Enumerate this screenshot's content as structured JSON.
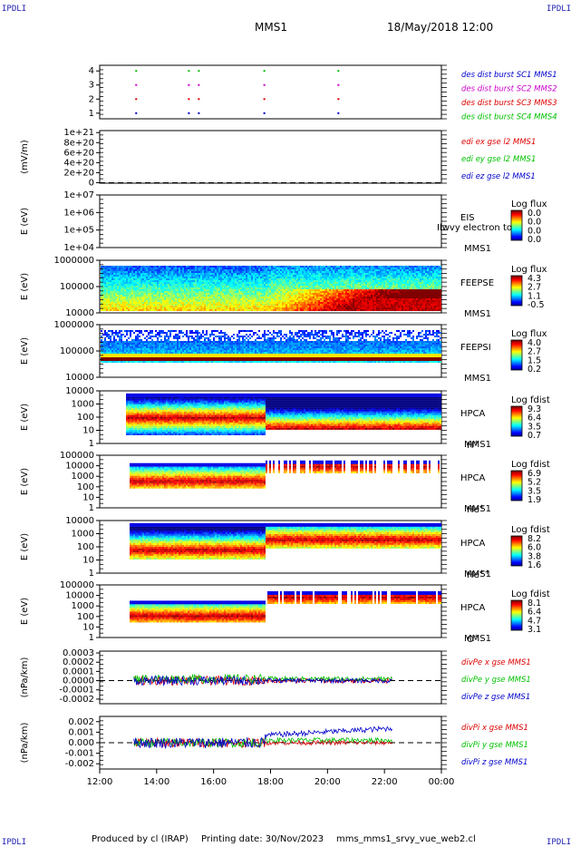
{
  "header": {
    "corner_label": "IPDLI",
    "mission": "MMS1",
    "date": "18/May/2018 12:00"
  },
  "footer": {
    "produced": "Produced by cl (IRAP)",
    "printing": "Printing date: 30/Nov/2023",
    "file": "mms_mms1_srvy_vue_web2.cl"
  },
  "colors": {
    "red": "#dd0000",
    "green": "#00c000",
    "blue": "#0000cc",
    "magenta": "#cc00cc",
    "axis": "#000000"
  },
  "chart_data": {
    "type": "multi-panel time series and spectrograms",
    "x_tick_labels": [
      "12:00",
      "14:00",
      "16:00",
      "18:00",
      "20:00",
      "22:00",
      "00:00"
    ],
    "x_range_hours": [
      12,
      24
    ],
    "panels": [
      {
        "type": "scatter",
        "y_tick_labels": [
          "4",
          "3",
          "2",
          "1"
        ],
        "ylim": [
          0.6,
          4.4
        ],
        "legend": [
          "des dist burst SC1 MMS1",
          "des dist burst SC2 MMS2",
          "des dist burst SC3 MMS3",
          "des dist burst SC4 MMS4"
        ],
        "legend_colors": [
          "#0000cc",
          "#cc00cc",
          "#dd0000",
          "#00c000"
        ],
        "burst_times_hours": [
          13.25,
          15.1,
          15.45,
          17.75,
          20.35
        ],
        "levels": [
          4,
          3,
          2,
          1
        ],
        "level_colors": [
          "#00c000",
          "#cc00cc",
          "#dd0000",
          "#0000cc"
        ]
      },
      {
        "type": "line",
        "ylabel": "(mV/m)",
        "y_tick_labels": [
          "1e+21",
          "8e+20",
          "6e+20",
          "4e+20",
          "2e+20",
          "0"
        ],
        "y_values": [
          1e+21,
          8e+20,
          6e+20,
          4e+20,
          2e+20,
          0
        ],
        "ylim": [
          -1e+19,
          1.04e+21
        ],
        "legend": [
          "edi ex gse l2 MMS1",
          "edi ey gse l2 MMS1",
          "edi ez gse l2 MMS1"
        ],
        "legend_colors": [
          "#dd0000",
          "#00c000",
          "#0000cc"
        ]
      },
      {
        "type": "heatmap",
        "ylabel": "E (eV)",
        "y_tick_labels": [
          "1e+07",
          "1e+06",
          "1e+05",
          "1e+04"
        ],
        "right_labels": [
          "EIS",
          "MMS1"
        ],
        "overlay_text": "Ilwvy electron to",
        "colorbar_title": "Log flux",
        "colorbar_ticks": [
          "0.0",
          "0.0",
          "0.0",
          "0.0"
        ]
      },
      {
        "type": "heatmap",
        "ylabel": "E (eV)",
        "y_tick_labels": [
          "1000000",
          "100000",
          "10000"
        ],
        "right_labels": [
          "FEEPSE",
          "MMS1"
        ],
        "colorbar_title": "Log flux",
        "colorbar_ticks": [
          "4.3",
          "2.7",
          "1.1",
          "-0.5"
        ]
      },
      {
        "type": "heatmap",
        "ylabel": "E (eV)",
        "y_tick_labels": [
          "1000000",
          "100000",
          "10000"
        ],
        "right_labels": [
          "FEEPSI",
          "MMS1"
        ],
        "colorbar_title": "Log flux",
        "colorbar_ticks": [
          "4.0",
          "2.7",
          "1.5",
          "0.2"
        ]
      },
      {
        "type": "heatmap",
        "ylabel": "E (eV)",
        "y_tick_labels": [
          "10000",
          "1000",
          "100",
          "10",
          "1"
        ],
        "right_labels": [
          "HPCA",
          "MMS1"
        ],
        "species": "H",
        "species_charge": "+",
        "colorbar_title": "Log fdist",
        "colorbar_ticks": [
          "9.3",
          "6.4",
          "3.5",
          "0.7"
        ]
      },
      {
        "type": "heatmap",
        "ylabel": "E (eV)",
        "y_tick_labels": [
          "100000",
          "10000",
          "1000",
          "100",
          "10",
          "1"
        ],
        "right_labels": [
          "HPCA",
          "MMS1"
        ],
        "species": "He",
        "species_charge": "+",
        "colorbar_title": "Log fdist",
        "colorbar_ticks": [
          "6.9",
          "5.2",
          "3.5",
          "1.9"
        ]
      },
      {
        "type": "heatmap",
        "ylabel": "E (eV)",
        "y_tick_labels": [
          "10000",
          "1000",
          "100",
          "10",
          "1"
        ],
        "right_labels": [
          "HPCA",
          "MMS1"
        ],
        "species": "He",
        "species_charge": "++",
        "colorbar_title": "Log fdist",
        "colorbar_ticks": [
          "8.2",
          "6.0",
          "3.8",
          "1.6"
        ]
      },
      {
        "type": "heatmap",
        "ylabel": "E (eV)",
        "y_tick_labels": [
          "100000",
          "10000",
          "1000",
          "100",
          "10",
          "1"
        ],
        "right_labels": [
          "HPCA",
          "MMS1"
        ],
        "species": "O",
        "species_charge": "+",
        "colorbar_title": "Log fdist",
        "colorbar_ticks": [
          "8.1",
          "6.4",
          "4.7",
          "3.1"
        ]
      },
      {
        "type": "line",
        "ylabel": "(nPa/km)",
        "y_tick_labels": [
          "0.0003",
          "0.0002",
          "0.0001",
          "0.0000",
          "-0.0001",
          "-0.0002"
        ],
        "y_values": [
          0.0003,
          0.0002,
          0.0001,
          0.0,
          -0.0001,
          -0.0002
        ],
        "ylim": [
          -0.00025,
          0.00032
        ],
        "legend": [
          "divPe x gse MMS1",
          "divPe y gse MMS1",
          "divPe z gse MMS1"
        ],
        "legend_colors": [
          "#dd0000",
          "#00c000",
          "#0000cc"
        ]
      },
      {
        "type": "line",
        "ylabel": "(nPa/km)",
        "y_tick_labels": [
          "0.002",
          "0.001",
          "0.000",
          "-0.001",
          "-0.002"
        ],
        "y_values": [
          0.002,
          0.001,
          0.0,
          -0.001,
          -0.002
        ],
        "ylim": [
          -0.0025,
          0.0025
        ],
        "legend": [
          "divPi x gse MMS1",
          "divPi y gse MMS1",
          "divPi z gse MMS1"
        ],
        "legend_colors": [
          "#dd0000",
          "#00c000",
          "#0000cc"
        ]
      }
    ]
  }
}
